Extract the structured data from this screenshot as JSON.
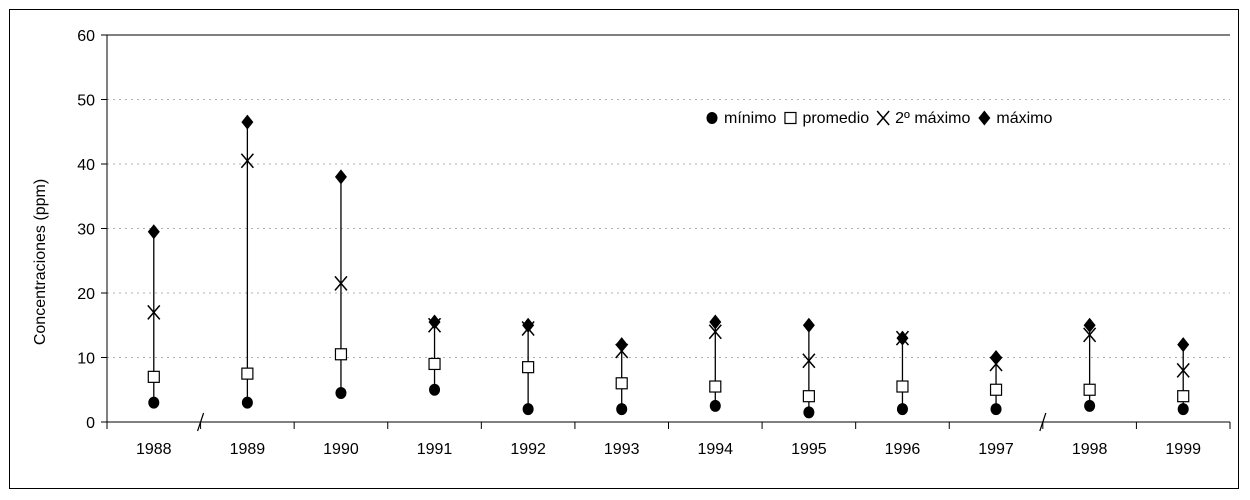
{
  "chart_data": {
    "type": "scatter",
    "title": "",
    "xlabel": "",
    "ylabel": "Concentraciones (ppm)",
    "categories": [
      "1988",
      "1989",
      "1990",
      "1991",
      "1992",
      "1993",
      "1994",
      "1995",
      "1996",
      "1997",
      "1998",
      "1999"
    ],
    "ylim": [
      0,
      60
    ],
    "yticks": [
      "0",
      "10",
      "20",
      "30",
      "40",
      "50",
      "60"
    ],
    "grid": true,
    "legend_position": "top-right",
    "series": [
      {
        "name": "mínimo",
        "marker": "circle",
        "values": [
          3,
          3,
          4.5,
          5,
          2,
          2,
          2.5,
          1.5,
          2,
          2,
          2.5,
          2
        ]
      },
      {
        "name": "promedio",
        "marker": "square",
        "values": [
          7,
          7.5,
          10.5,
          9,
          8.5,
          6,
          5.5,
          4,
          5.5,
          5,
          5,
          4
        ]
      },
      {
        "name": "2º máximo",
        "marker": "x",
        "values": [
          17,
          40.5,
          21.5,
          15,
          14.5,
          11,
          14,
          9.5,
          13,
          9,
          13.5,
          8
        ]
      },
      {
        "name": "máximo",
        "marker": "diamond",
        "values": [
          29.5,
          46.5,
          38,
          15.5,
          15,
          12,
          15.5,
          15,
          13,
          10,
          15,
          12
        ]
      }
    ]
  }
}
